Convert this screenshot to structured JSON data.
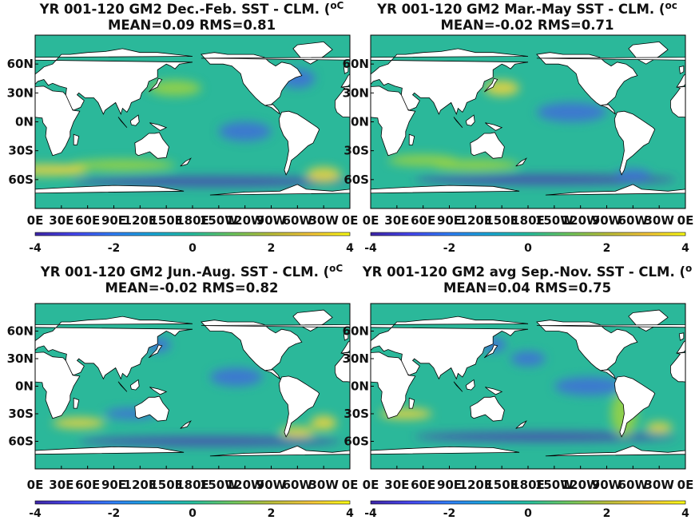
{
  "chart_data": [
    {
      "type": "heatmap",
      "title": "YR 001-120 GM2  Dec.-Feb. SST - CLM. (",
      "units": "oC",
      "subtitle": "MEAN=0.09   RMS=0.81",
      "mean": 0.09,
      "rms": 0.81,
      "y_ticks": [
        "60N",
        "30N",
        "0N",
        "30S",
        "60S"
      ],
      "x_ticks": [
        "0E",
        "30E",
        "60E",
        "90E",
        "120E",
        "150E",
        "180E",
        "150W",
        "120W",
        "90W",
        "60W",
        "30W",
        "0E"
      ],
      "colorbar": {
        "ticks": [
          "-4",
          "-2",
          "0",
          "2",
          "4"
        ],
        "range": [
          -4,
          4
        ]
      }
    },
    {
      "type": "heatmap",
      "title": "YR 001-120 GM2 Mar.-May SST - CLM. (",
      "units": "oc",
      "subtitle": "MEAN=-0.02   RMS=0.71",
      "mean": -0.02,
      "rms": 0.71,
      "y_ticks": [
        "60N",
        "30N",
        "0N",
        "30S",
        "60S"
      ],
      "x_ticks": [
        "0E",
        "30E",
        "60E",
        "90E",
        "120E",
        "150E",
        "180E",
        "150W",
        "120W",
        "90W",
        "60W",
        "30W",
        "0E"
      ],
      "colorbar": {
        "ticks": [
          "-4",
          "-2",
          "0",
          "2",
          "4"
        ],
        "range": [
          -4,
          4
        ]
      }
    },
    {
      "type": "heatmap",
      "title": "YR 001-120 GM2 Jun.-Aug. SST - CLM. (",
      "units": "oC",
      "subtitle": "MEAN=-0.02   RMS=0.82",
      "mean": -0.02,
      "rms": 0.82,
      "y_ticks": [
        "60N",
        "30N",
        "0N",
        "30S",
        "60S"
      ],
      "x_ticks": [
        "0E",
        "30E",
        "60E",
        "90E",
        "120E",
        "150E",
        "180E",
        "150W",
        "120W",
        "90W",
        "60W",
        "30W",
        "0E"
      ],
      "colorbar": {
        "ticks": [
          "-4",
          "-2",
          "0",
          "2",
          "4"
        ],
        "range": [
          -4,
          4
        ]
      }
    },
    {
      "type": "heatmap",
      "title": "YR 001-120 GM2 avg Sep.-Nov. SST - CLM. (",
      "units": "o",
      "subtitle": "MEAN=0.04   RMS=0.75",
      "mean": 0.04,
      "rms": 0.75,
      "y_ticks": [
        "60N",
        "30N",
        "0N",
        "30S",
        "60S"
      ],
      "x_ticks": [
        "0E",
        "30E",
        "60E",
        "90E",
        "120E",
        "150E",
        "180E",
        "150W",
        "120W",
        "90W",
        "60W",
        "30W",
        "0E"
      ],
      "colorbar": {
        "ticks": [
          "-4",
          "-2",
          "0",
          "2",
          "4"
        ],
        "range": [
          -4,
          4
        ]
      }
    }
  ],
  "colors": {
    "ocean_base": "#2bb89a",
    "cold": "#3f6fd8",
    "very_cold": "#4b3fb0",
    "warm": "#9ed440",
    "hot": "#f2d53a",
    "land": "#ffffff",
    "colormap": [
      "#3e26a8",
      "#4646f0",
      "#2f7ff8",
      "#18a8d8",
      "#26bfa0",
      "#6cc860",
      "#bbbf3a",
      "#f5c53a",
      "#f9fb14"
    ]
  }
}
